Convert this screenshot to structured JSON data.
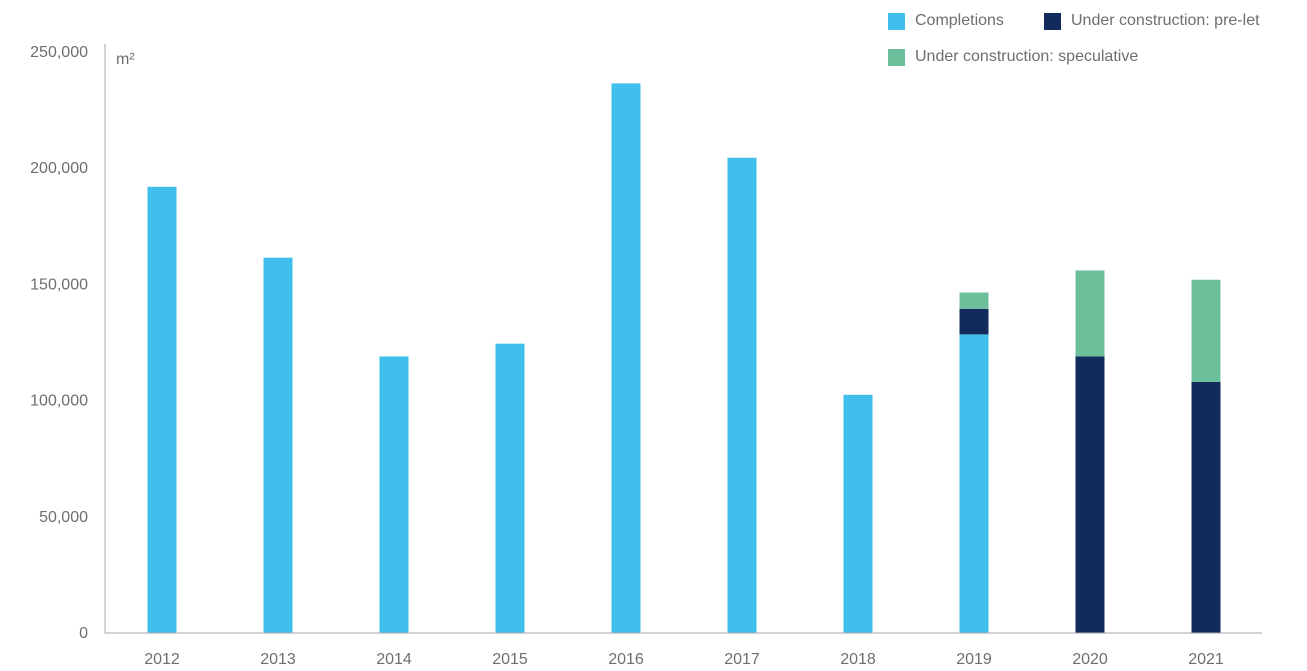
{
  "chart_data": {
    "type": "bar",
    "stacked": true,
    "categories": [
      "2012",
      "2013",
      "2014",
      "2015",
      "2016",
      "2017",
      "2018",
      "2019",
      "2020",
      "2021"
    ],
    "series": [
      {
        "name": "Completions",
        "color": "#41bfec",
        "values": [
          192000,
          161500,
          119000,
          124500,
          236500,
          204500,
          102500,
          128500,
          0,
          0
        ]
      },
      {
        "name": "Under construction: pre-let",
        "color": "#122a5c",
        "values": [
          0,
          0,
          0,
          0,
          0,
          0,
          0,
          11000,
          119000,
          108000
        ]
      },
      {
        "name": "Under construction: speculative",
        "color": "#6cbf9b",
        "values": [
          0,
          0,
          0,
          0,
          0,
          0,
          0,
          7000,
          37000,
          44000
        ]
      }
    ],
    "yunit": "m²",
    "ylim": [
      0,
      250000
    ],
    "yticks": [
      0,
      50000,
      100000,
      150000,
      200000,
      250000
    ],
    "ytick_labels": [
      "0",
      "50,000",
      "100,000",
      "150,000",
      "200,000",
      "250,000"
    ],
    "grid": false,
    "legend_position": "top-right"
  }
}
